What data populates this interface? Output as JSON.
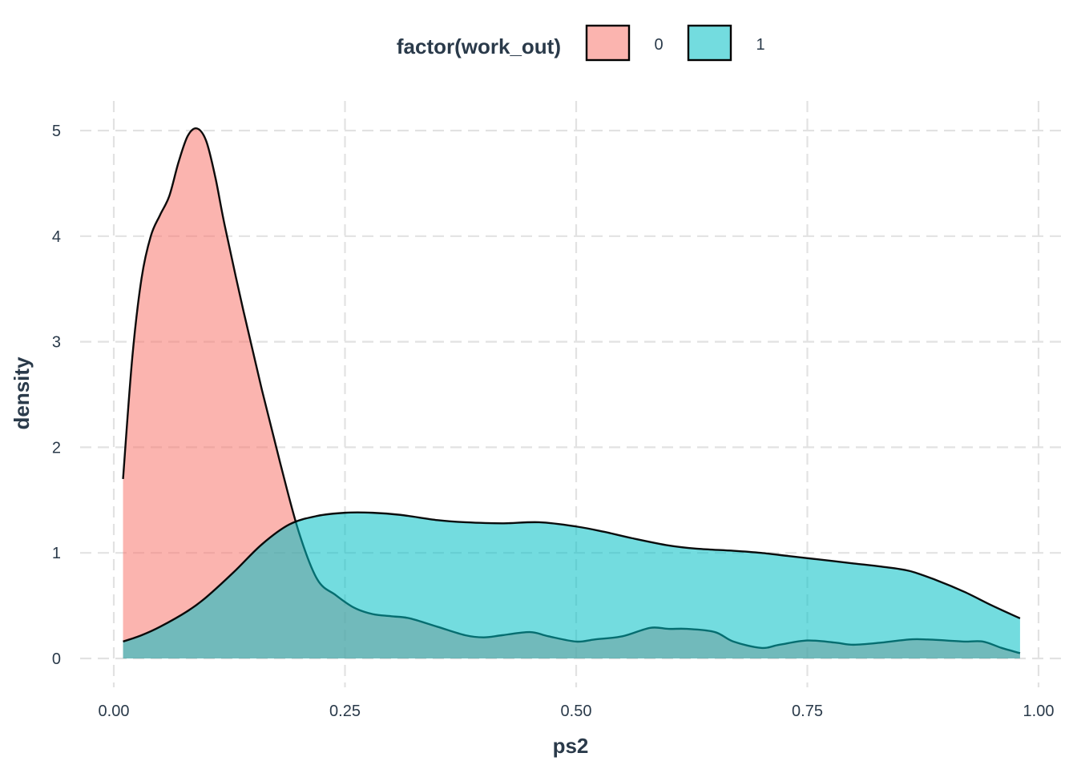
{
  "chart_data": {
    "type": "area",
    "subtype": "density",
    "xlabel": "ps2",
    "ylabel": "density",
    "xlim": [
      0.0,
      1.0
    ],
    "ylim": [
      0,
      5.2
    ],
    "x_ticks": [
      0.0,
      0.25,
      0.5,
      0.75,
      1.0
    ],
    "x_tick_labels": [
      "0.00",
      "0.25",
      "0.50",
      "0.75",
      "1.00"
    ],
    "y_ticks": [
      0,
      1,
      2,
      3,
      4,
      5
    ],
    "y_tick_labels": [
      "0",
      "1",
      "2",
      "3",
      "4",
      "5"
    ],
    "grid": true,
    "legend": {
      "title": "factor(work_out)",
      "position": "top",
      "entries": [
        {
          "label": "0",
          "color": "#F8766D"
        },
        {
          "label": "1",
          "color": "#00BFC4"
        }
      ]
    },
    "fill_opacity": 0.55,
    "series": [
      {
        "name": "0",
        "color": "#F8766D",
        "x": [
          0.01,
          0.02,
          0.03,
          0.04,
          0.05,
          0.06,
          0.07,
          0.08,
          0.09,
          0.1,
          0.11,
          0.12,
          0.14,
          0.16,
          0.18,
          0.2,
          0.22,
          0.24,
          0.26,
          0.28,
          0.3,
          0.32,
          0.35,
          0.38,
          0.4,
          0.42,
          0.45,
          0.47,
          0.5,
          0.52,
          0.55,
          0.58,
          0.6,
          0.62,
          0.65,
          0.67,
          0.7,
          0.72,
          0.75,
          0.78,
          0.8,
          0.83,
          0.86,
          0.88,
          0.9,
          0.92,
          0.94,
          0.96,
          0.98
        ],
        "y": [
          1.7,
          2.85,
          3.6,
          4.0,
          4.2,
          4.38,
          4.7,
          4.95,
          5.02,
          4.9,
          4.55,
          4.1,
          3.3,
          2.55,
          1.85,
          1.2,
          0.75,
          0.6,
          0.48,
          0.42,
          0.4,
          0.38,
          0.3,
          0.22,
          0.2,
          0.22,
          0.25,
          0.21,
          0.16,
          0.18,
          0.21,
          0.29,
          0.28,
          0.28,
          0.25,
          0.16,
          0.1,
          0.13,
          0.17,
          0.15,
          0.13,
          0.15,
          0.18,
          0.18,
          0.17,
          0.16,
          0.16,
          0.1,
          0.05
        ]
      },
      {
        "name": "1",
        "color": "#00BFC4",
        "x": [
          0.01,
          0.03,
          0.05,
          0.08,
          0.1,
          0.13,
          0.16,
          0.19,
          0.22,
          0.25,
          0.28,
          0.31,
          0.35,
          0.38,
          0.42,
          0.46,
          0.5,
          0.53,
          0.56,
          0.6,
          0.63,
          0.67,
          0.7,
          0.73,
          0.76,
          0.8,
          0.83,
          0.86,
          0.89,
          0.92,
          0.95,
          0.98
        ],
        "y": [
          0.16,
          0.22,
          0.3,
          0.45,
          0.58,
          0.82,
          1.08,
          1.27,
          1.35,
          1.38,
          1.38,
          1.36,
          1.31,
          1.29,
          1.28,
          1.29,
          1.25,
          1.2,
          1.14,
          1.07,
          1.04,
          1.02,
          1.0,
          0.97,
          0.94,
          0.9,
          0.87,
          0.83,
          0.74,
          0.63,
          0.5,
          0.38
        ]
      }
    ]
  }
}
